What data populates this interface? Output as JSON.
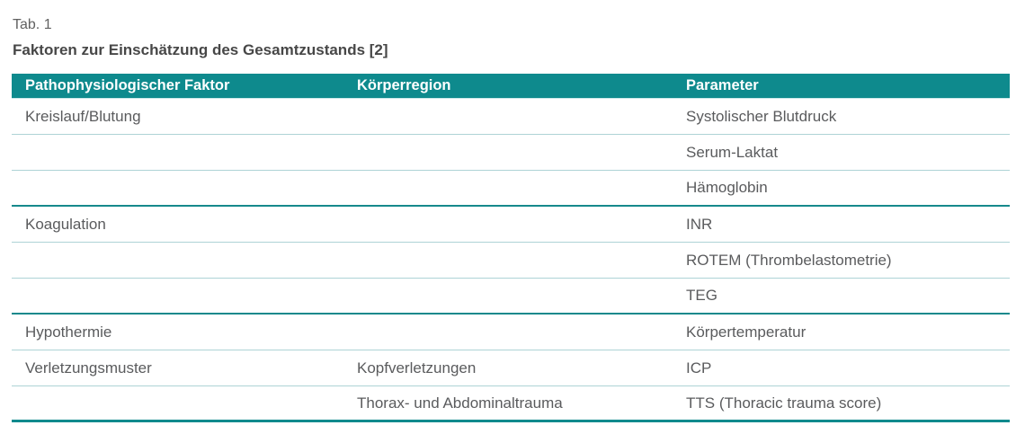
{
  "caption": "Tab. 1",
  "title": "Faktoren zur Einschätzung des Gesamtzustands [2]",
  "table": {
    "columns": [
      "Pathophysiologischer Faktor",
      "Körperregion",
      "Parameter"
    ],
    "rows": [
      {
        "faktor": "Kreislauf/Blutung",
        "region": "",
        "parameter": "Systolischer Blutdruck",
        "separator": "thin"
      },
      {
        "faktor": "",
        "region": "",
        "parameter": "Serum-Laktat",
        "separator": "thin"
      },
      {
        "faktor": "",
        "region": "",
        "parameter": "Hämoglobin",
        "separator": "thick"
      },
      {
        "faktor": "Koagulation",
        "region": "",
        "parameter": "INR",
        "separator": "thin"
      },
      {
        "faktor": "",
        "region": "",
        "parameter": "ROTEM (Thrombelastometrie)",
        "separator": "thin"
      },
      {
        "faktor": "",
        "region": "",
        "parameter": "TEG",
        "separator": "thick"
      },
      {
        "faktor": "Hypothermie",
        "region": "",
        "parameter": "Körpertemperatur",
        "separator": "thin"
      },
      {
        "faktor": "Verletzungsmuster",
        "region": "Kopfverletzungen",
        "parameter": "ICP",
        "separator": "thin"
      },
      {
        "faktor": "",
        "region": "Thorax- und Abdominaltrauma",
        "parameter": "TTS (Thoracic trauma score)",
        "separator": "bottom"
      }
    ]
  },
  "colors": {
    "accent_teal": "#0e8a8d",
    "rule_thin": "#aed3d6",
    "rule_thick": "#16898c",
    "header_text": "#ffffff",
    "body_text": "#5a5b5d",
    "caption_text": "#616161",
    "title_text": "#474747"
  }
}
